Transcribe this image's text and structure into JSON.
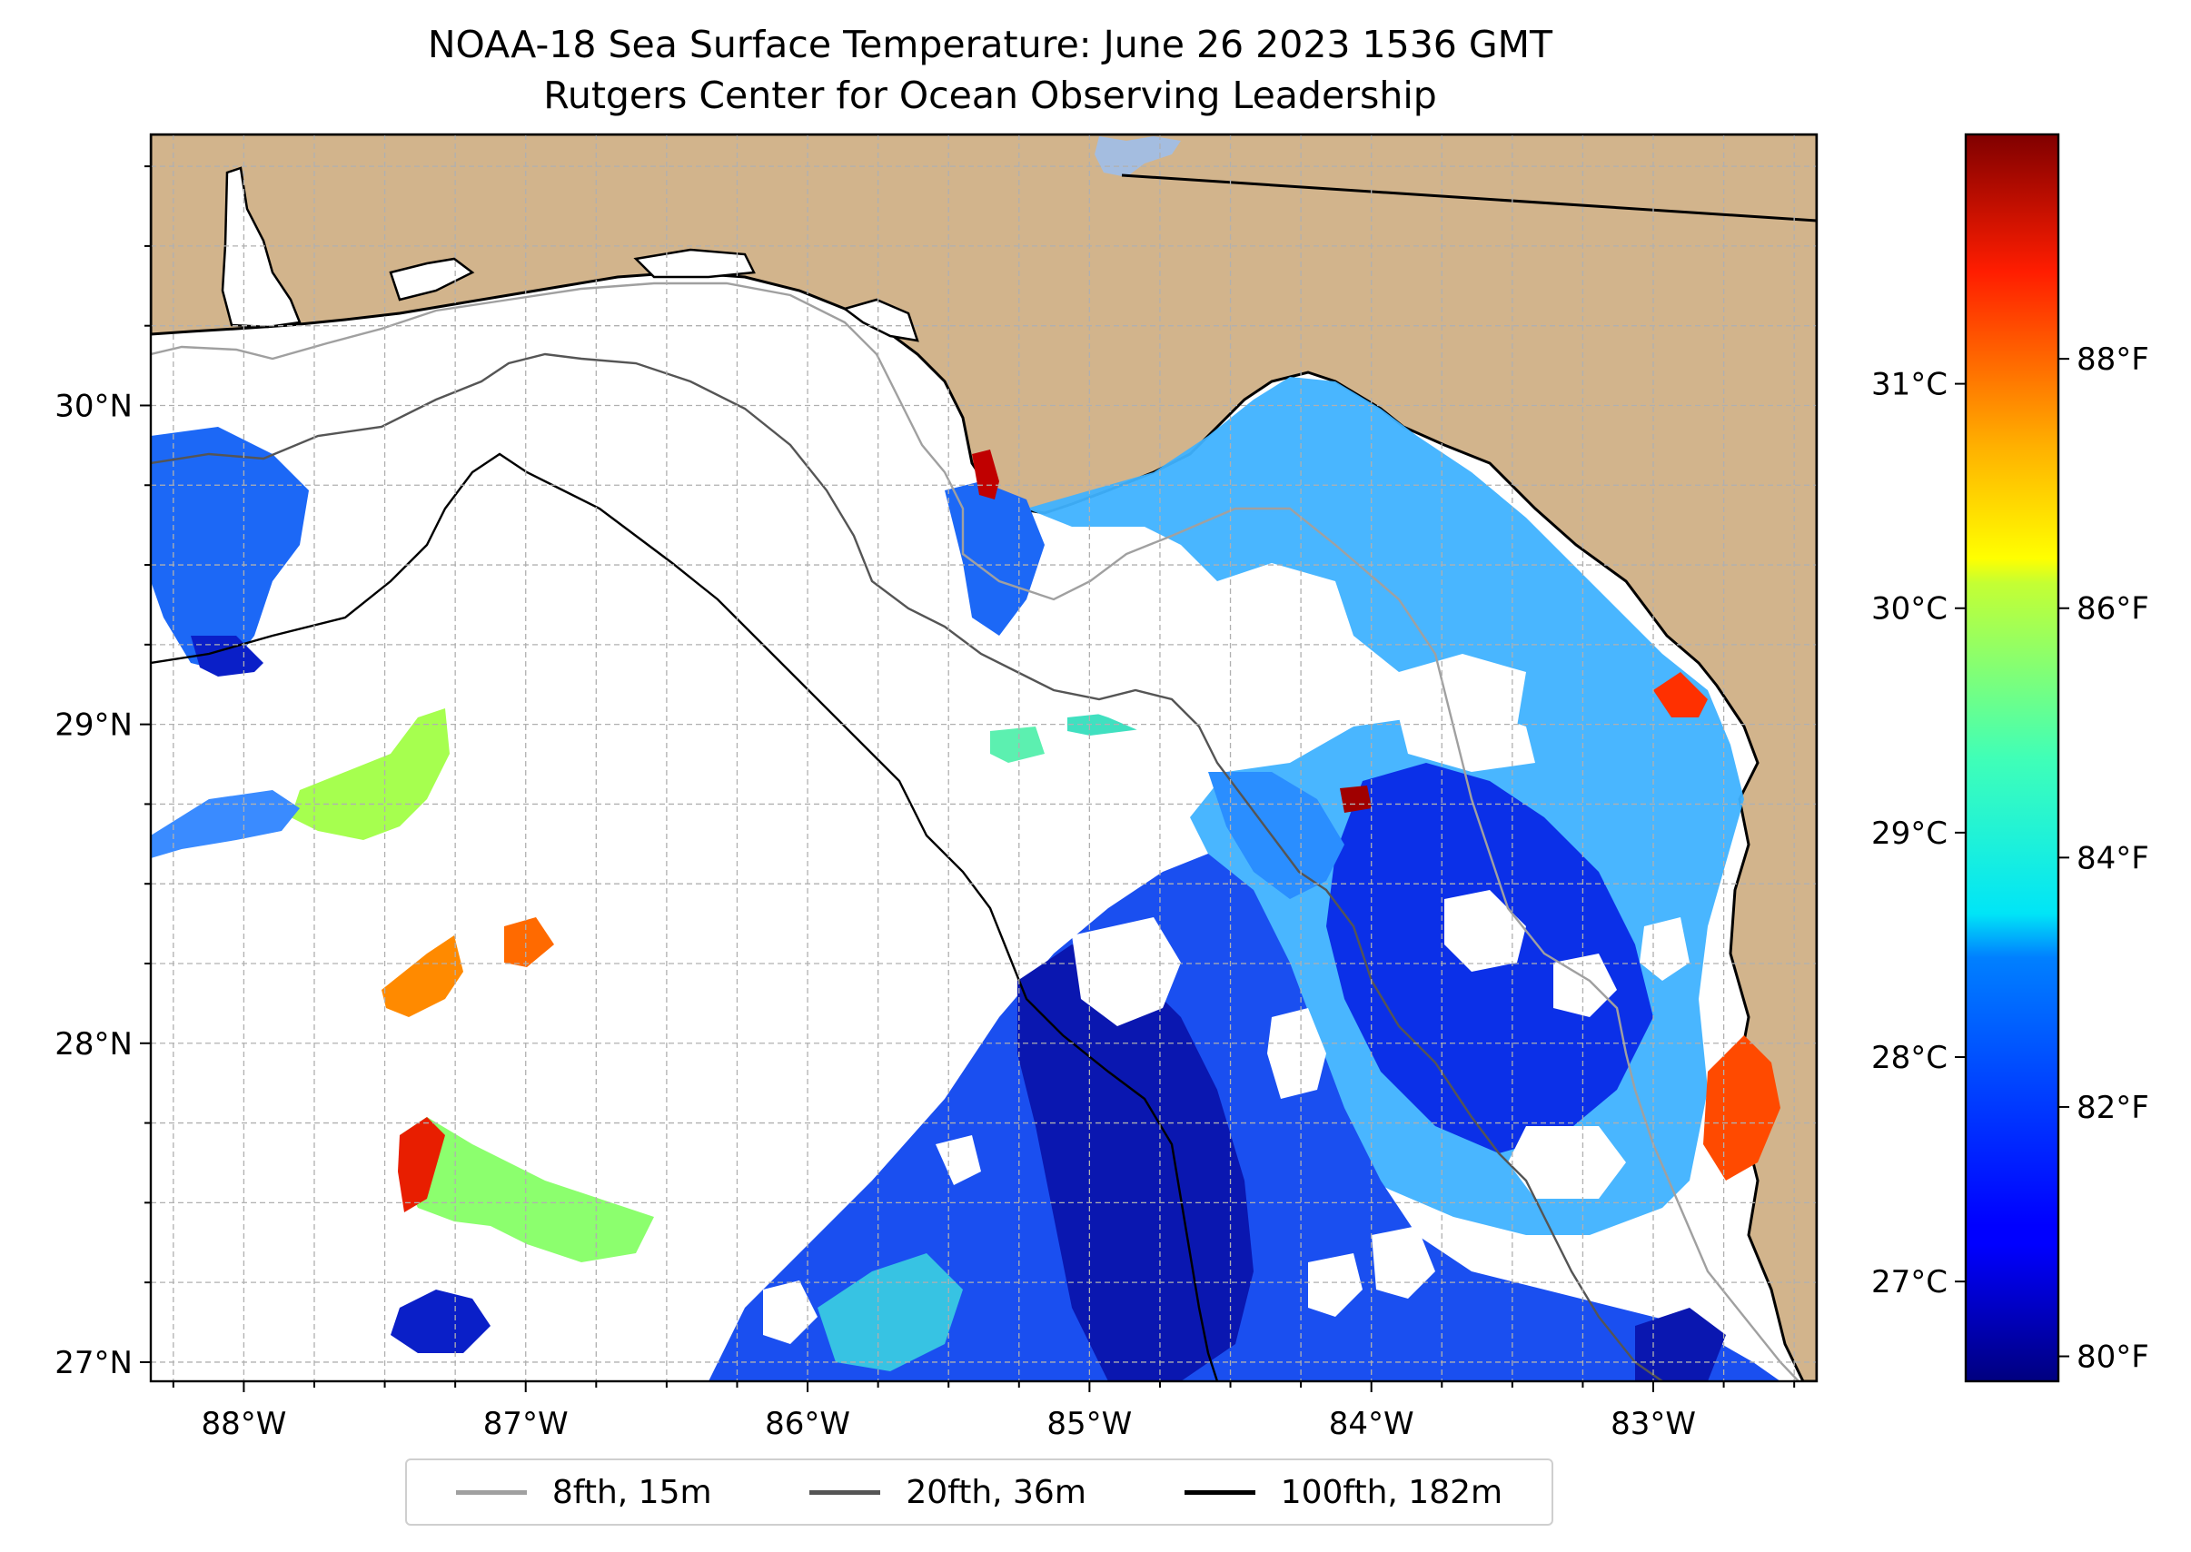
{
  "title": {
    "line1": "NOAA-18 Sea Surface Temperature: June 26 2023 1536 GMT",
    "line2": "Rutgers Center for Ocean Observing Leadership"
  },
  "map": {
    "lon_range": [
      -88.33,
      -82.42
    ],
    "lat_range": [
      26.94,
      30.85
    ],
    "lon_ticks": [
      {
        "value": -88,
        "label": "88°W"
      },
      {
        "value": -87,
        "label": "87°W"
      },
      {
        "value": -86,
        "label": "86°W"
      },
      {
        "value": -85,
        "label": "85°W"
      },
      {
        "value": -84,
        "label": "84°W"
      },
      {
        "value": -83,
        "label": "83°W"
      }
    ],
    "lat_ticks": [
      {
        "value": 27,
        "label": "27°N"
      },
      {
        "value": 28,
        "label": "28°N"
      },
      {
        "value": 29,
        "label": "29°N"
      },
      {
        "value": 30,
        "label": "30°N"
      }
    ],
    "colors": {
      "land": "#d2b48c",
      "ocean": "#ffffff",
      "gridline": "#b0b0b0",
      "lake": "#a4bde0"
    },
    "bathymetry_contours": [
      {
        "name": "8fth, 15m",
        "color": "#a0a0a0"
      },
      {
        "name": "20fth, 36m",
        "color": "#555555"
      },
      {
        "name": "100fth, 182m",
        "color": "#000000"
      }
    ]
  },
  "colorbar": {
    "colormap": "jet",
    "range_f": [
      79.8,
      89.8
    ],
    "celsius_ticks": [
      {
        "value": 27,
        "label": "27°C"
      },
      {
        "value": 28,
        "label": "28°C"
      },
      {
        "value": 29,
        "label": "29°C"
      },
      {
        "value": 30,
        "label": "30°C"
      },
      {
        "value": 31,
        "label": "31°C"
      }
    ],
    "fahrenheit_ticks": [
      {
        "value": 80,
        "label": "80°F"
      },
      {
        "value": 82,
        "label": "82°F"
      },
      {
        "value": 84,
        "label": "84°F"
      },
      {
        "value": 86,
        "label": "86°F"
      },
      {
        "value": 88,
        "label": "88°F"
      }
    ]
  },
  "legend": {
    "items": [
      {
        "label": "8fth, 15m",
        "color": "#a0a0a0"
      },
      {
        "label": "20fth, 36m",
        "color": "#555555"
      },
      {
        "label": "100fth, 182m",
        "color": "#000000"
      }
    ]
  }
}
